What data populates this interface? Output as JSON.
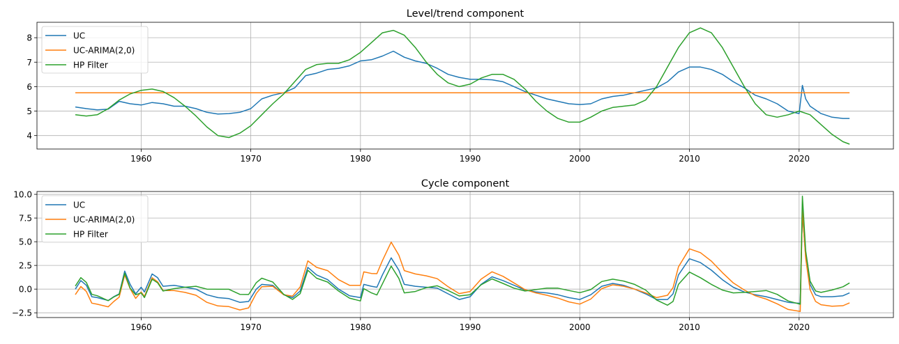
{
  "chart_data": [
    {
      "type": "line",
      "title": "Level/trend component",
      "xlabel": "",
      "ylabel": "",
      "xlim": [
        1950.5,
        2028.6
      ],
      "ylim": [
        3.45,
        8.63
      ],
      "xticks": [
        1960,
        1970,
        1980,
        1990,
        2000,
        2010,
        2020
      ],
      "yticks": [
        4,
        5,
        6,
        7,
        8
      ],
      "ytick_labels": [
        "4",
        "5",
        "6",
        "7",
        "8"
      ],
      "grid": true,
      "legend": "top-left",
      "series": [
        {
          "name": "UC",
          "color": "#1f77b4",
          "x": [
            1954,
            1955,
            1956,
            1957,
            1958,
            1959,
            1960,
            1961,
            1962,
            1963,
            1964,
            1965,
            1966,
            1967,
            1968,
            1969,
            1970,
            1971,
            1972,
            1973,
            1974,
            1975,
            1976,
            1977,
            1978,
            1979,
            1980,
            1981,
            1982,
            1983,
            1984,
            1985,
            1986,
            1987,
            1988,
            1989,
            1990,
            1991,
            1992,
            1993,
            1994,
            1995,
            1996,
            1997,
            1998,
            1999,
            2000,
            2001,
            2002,
            2003,
            2004,
            2005,
            2006,
            2007,
            2008,
            2009,
            2010,
            2011,
            2012,
            2013,
            2014,
            2015,
            2016,
            2017,
            2018,
            2019,
            2020,
            2020.3,
            2020.6,
            2021,
            2022,
            2023,
            2024,
            2024.6
          ],
          "y": [
            5.17,
            5.1,
            5.05,
            5.08,
            5.4,
            5.3,
            5.25,
            5.35,
            5.3,
            5.2,
            5.2,
            5.1,
            4.95,
            4.88,
            4.9,
            4.95,
            5.1,
            5.5,
            5.65,
            5.75,
            5.95,
            6.45,
            6.55,
            6.7,
            6.75,
            6.85,
            7.05,
            7.1,
            7.25,
            7.45,
            7.2,
            7.05,
            6.95,
            6.75,
            6.5,
            6.38,
            6.3,
            6.3,
            6.28,
            6.2,
            6.0,
            5.8,
            5.65,
            5.5,
            5.4,
            5.3,
            5.27,
            5.3,
            5.5,
            5.6,
            5.65,
            5.75,
            5.85,
            5.95,
            6.2,
            6.6,
            6.8,
            6.8,
            6.7,
            6.5,
            6.2,
            5.95,
            5.65,
            5.5,
            5.3,
            5.0,
            4.9,
            6.05,
            5.5,
            5.2,
            4.9,
            4.75,
            4.7,
            4.7
          ]
        },
        {
          "name": "UC-ARIMA(2,0)",
          "color": "#ff7f0e",
          "x": [
            1954,
            2024.6
          ],
          "y": [
            5.75,
            5.75
          ]
        },
        {
          "name": "HP Filter",
          "color": "#2ca02c",
          "x": [
            1954,
            1955,
            1956,
            1957,
            1958,
            1959,
            1960,
            1961,
            1962,
            1963,
            1964,
            1965,
            1966,
            1967,
            1968,
            1969,
            1970,
            1971,
            1972,
            1973,
            1974,
            1975,
            1976,
            1977,
            1978,
            1979,
            1980,
            1981,
            1982,
            1983,
            1984,
            1985,
            1986,
            1987,
            1988,
            1989,
            1990,
            1991,
            1992,
            1993,
            1994,
            1995,
            1996,
            1997,
            1998,
            1999,
            2000,
            2001,
            2002,
            2003,
            2004,
            2005,
            2006,
            2007,
            2008,
            2009,
            2010,
            2011,
            2012,
            2013,
            2014,
            2015,
            2016,
            2017,
            2018,
            2019,
            2020,
            2021,
            2022,
            2023,
            2024,
            2024.6
          ],
          "y": [
            4.85,
            4.8,
            4.85,
            5.1,
            5.45,
            5.7,
            5.85,
            5.9,
            5.8,
            5.55,
            5.2,
            4.8,
            4.35,
            4.0,
            3.92,
            4.1,
            4.4,
            4.85,
            5.3,
            5.7,
            6.2,
            6.7,
            6.9,
            6.95,
            6.95,
            7.1,
            7.4,
            7.8,
            8.2,
            8.3,
            8.1,
            7.6,
            7.0,
            6.5,
            6.15,
            6.0,
            6.1,
            6.35,
            6.5,
            6.5,
            6.3,
            5.9,
            5.4,
            5.0,
            4.7,
            4.55,
            4.55,
            4.75,
            5.0,
            5.15,
            5.2,
            5.25,
            5.45,
            6.0,
            6.8,
            7.6,
            8.2,
            8.4,
            8.2,
            7.6,
            6.8,
            6.0,
            5.3,
            4.85,
            4.75,
            4.85,
            5.0,
            4.85,
            4.45,
            4.05,
            3.75,
            3.65
          ]
        }
      ]
    },
    {
      "type": "line",
      "title": "Cycle component",
      "xlabel": "",
      "ylabel": "",
      "xlim": [
        1950.5,
        2028.6
      ],
      "ylim": [
        -3.0,
        10.3
      ],
      "xticks": [
        1960,
        1970,
        1980,
        1990,
        2000,
        2010,
        2020
      ],
      "yticks": [
        -2.5,
        0.0,
        2.5,
        5.0,
        7.5,
        10.0
      ],
      "ytick_labels": [
        "−2.5",
        "0.0",
        "2.5",
        "5.0",
        "7.5",
        "10.0"
      ],
      "grid": true,
      "legend": "top-left",
      "x": [
        1954,
        1954.5,
        1955,
        1955.5,
        1956,
        1957,
        1957.5,
        1958,
        1958.5,
        1959,
        1959.5,
        1960,
        1960.3,
        1961,
        1961.5,
        1962,
        1963,
        1964,
        1965,
        1966,
        1967,
        1968,
        1969,
        1969.8,
        1970.5,
        1971,
        1972,
        1973,
        1973.8,
        1974.5,
        1975.2,
        1976,
        1977,
        1978,
        1979,
        1980,
        1980.3,
        1981,
        1981.5,
        1982,
        1982.8,
        1983.5,
        1984,
        1985,
        1986,
        1987,
        1988,
        1989,
        1990,
        1991,
        1992,
        1993,
        1994,
        1995,
        1996,
        1997,
        1998,
        1999,
        2000,
        2001,
        2002,
        2003,
        2004,
        2005,
        2006,
        2007,
        2008,
        2008.5,
        2009,
        2010,
        2011,
        2012,
        2013,
        2014,
        2015,
        2016,
        2017,
        2018,
        2019,
        2020.1,
        2020.3,
        2020.6,
        2021,
        2021.5,
        2022,
        2023,
        2024,
        2024.6
      ],
      "series": [
        {
          "name": "UC",
          "color": "#1f77b4",
          "y": [
            0,
            0.9,
            0.4,
            -0.8,
            -0.9,
            -1.2,
            -0.8,
            -0.5,
            1.9,
            0.5,
            -0.5,
            0.2,
            -0.3,
            1.6,
            1.2,
            0.3,
            0.4,
            0.2,
            0,
            -0.6,
            -0.9,
            -1.0,
            -1.4,
            -1.3,
            0.0,
            0.5,
            0.4,
            -0.6,
            -0.9,
            -0.2,
            2.3,
            1.5,
            1.0,
            0.0,
            -0.7,
            -0.9,
            0.5,
            0.3,
            0.2,
            1.5,
            3.3,
            2.0,
            0.5,
            0.3,
            0.2,
            0.1,
            -0.5,
            -1.1,
            -0.8,
            0.5,
            1.3,
            0.9,
            0.4,
            -0.1,
            -0.3,
            -0.4,
            -0.6,
            -0.9,
            -1.1,
            -0.6,
            0.3,
            0.6,
            0.4,
            0,
            -0.5,
            -1.1,
            -1.1,
            -0.5,
            1.5,
            3.2,
            2.8,
            2.0,
            1.0,
            0.2,
            -0.3,
            -0.6,
            -0.8,
            -1.1,
            -1.4,
            -1.5,
            8.0,
            3.5,
            0.5,
            -0.6,
            -0.8,
            -0.8,
            -0.7,
            -0.4
          ]
        },
        {
          "name": "UC-ARIMA(2,0)",
          "color": "#ff7f0e",
          "y": [
            -0.58,
            0.28,
            -0.25,
            -1.48,
            -1.6,
            -1.87,
            -1.31,
            -0.85,
            1.5,
            0.05,
            -0.98,
            -0.3,
            -0.77,
            1.2,
            0.77,
            -0.15,
            -0.15,
            -0.35,
            -0.65,
            -1.4,
            -1.77,
            -1.85,
            -2.2,
            -1.98,
            -0.45,
            0.25,
            0.3,
            -0.6,
            -0.74,
            0.23,
            2.98,
            2.3,
            1.95,
            1.0,
            0.4,
            0.4,
            1.82,
            1.65,
            1.63,
            3.0,
            4.96,
            3.58,
            1.95,
            1.6,
            1.4,
            1.1,
            0.25,
            -0.47,
            -0.25,
            1.05,
            1.83,
            1.35,
            0.65,
            -0.05,
            -0.4,
            -0.65,
            -0.95,
            -1.35,
            -1.58,
            -1.05,
            0.05,
            0.45,
            0.3,
            0,
            -0.4,
            -0.9,
            -0.65,
            0.15,
            2.35,
            4.25,
            3.85,
            2.95,
            1.75,
            0.65,
            -0.1,
            -0.7,
            -1.05,
            -1.55,
            -2.15,
            -2.35,
            8.3,
            3.25,
            -0.05,
            -1.3,
            -1.65,
            -1.8,
            -1.75,
            -1.45
          ]
        },
        {
          "name": "HP Filter",
          "color": "#2ca02c",
          "y": [
            0.32,
            1.21,
            0.7,
            -0.55,
            -0.7,
            -1.22,
            -0.83,
            -0.55,
            1.68,
            0.1,
            -0.6,
            -0.4,
            -0.89,
            1.05,
            0.67,
            -0.2,
            0.05,
            0.2,
            0.3,
            0.0,
            -0.02,
            -0.02,
            -0.55,
            -0.57,
            0.68,
            1.15,
            0.75,
            -0.55,
            -1.09,
            -0.47,
            1.99,
            1.15,
            0.75,
            -0.2,
            -0.95,
            -1.25,
            0.05,
            -0.4,
            -0.62,
            0.55,
            2.43,
            1.13,
            -0.4,
            -0.25,
            0.15,
            0.35,
            -0.15,
            -0.72,
            -0.6,
            0.45,
            1.08,
            0.6,
            0.1,
            -0.2,
            -0.05,
            0.1,
            0.1,
            -0.15,
            -0.38,
            -0.05,
            0.8,
            1.05,
            0.85,
            0.5,
            -0.1,
            -1.15,
            -1.7,
            -1.3,
            0.5,
            1.8,
            1.2,
            0.5,
            -0.1,
            -0.4,
            -0.35,
            -0.25,
            -0.15,
            -0.55,
            -1.25,
            -1.6,
            9.8,
            4.05,
            0.85,
            -0.2,
            -0.35,
            -0.1,
            0.25,
            0.65
          ]
        }
      ]
    }
  ]
}
